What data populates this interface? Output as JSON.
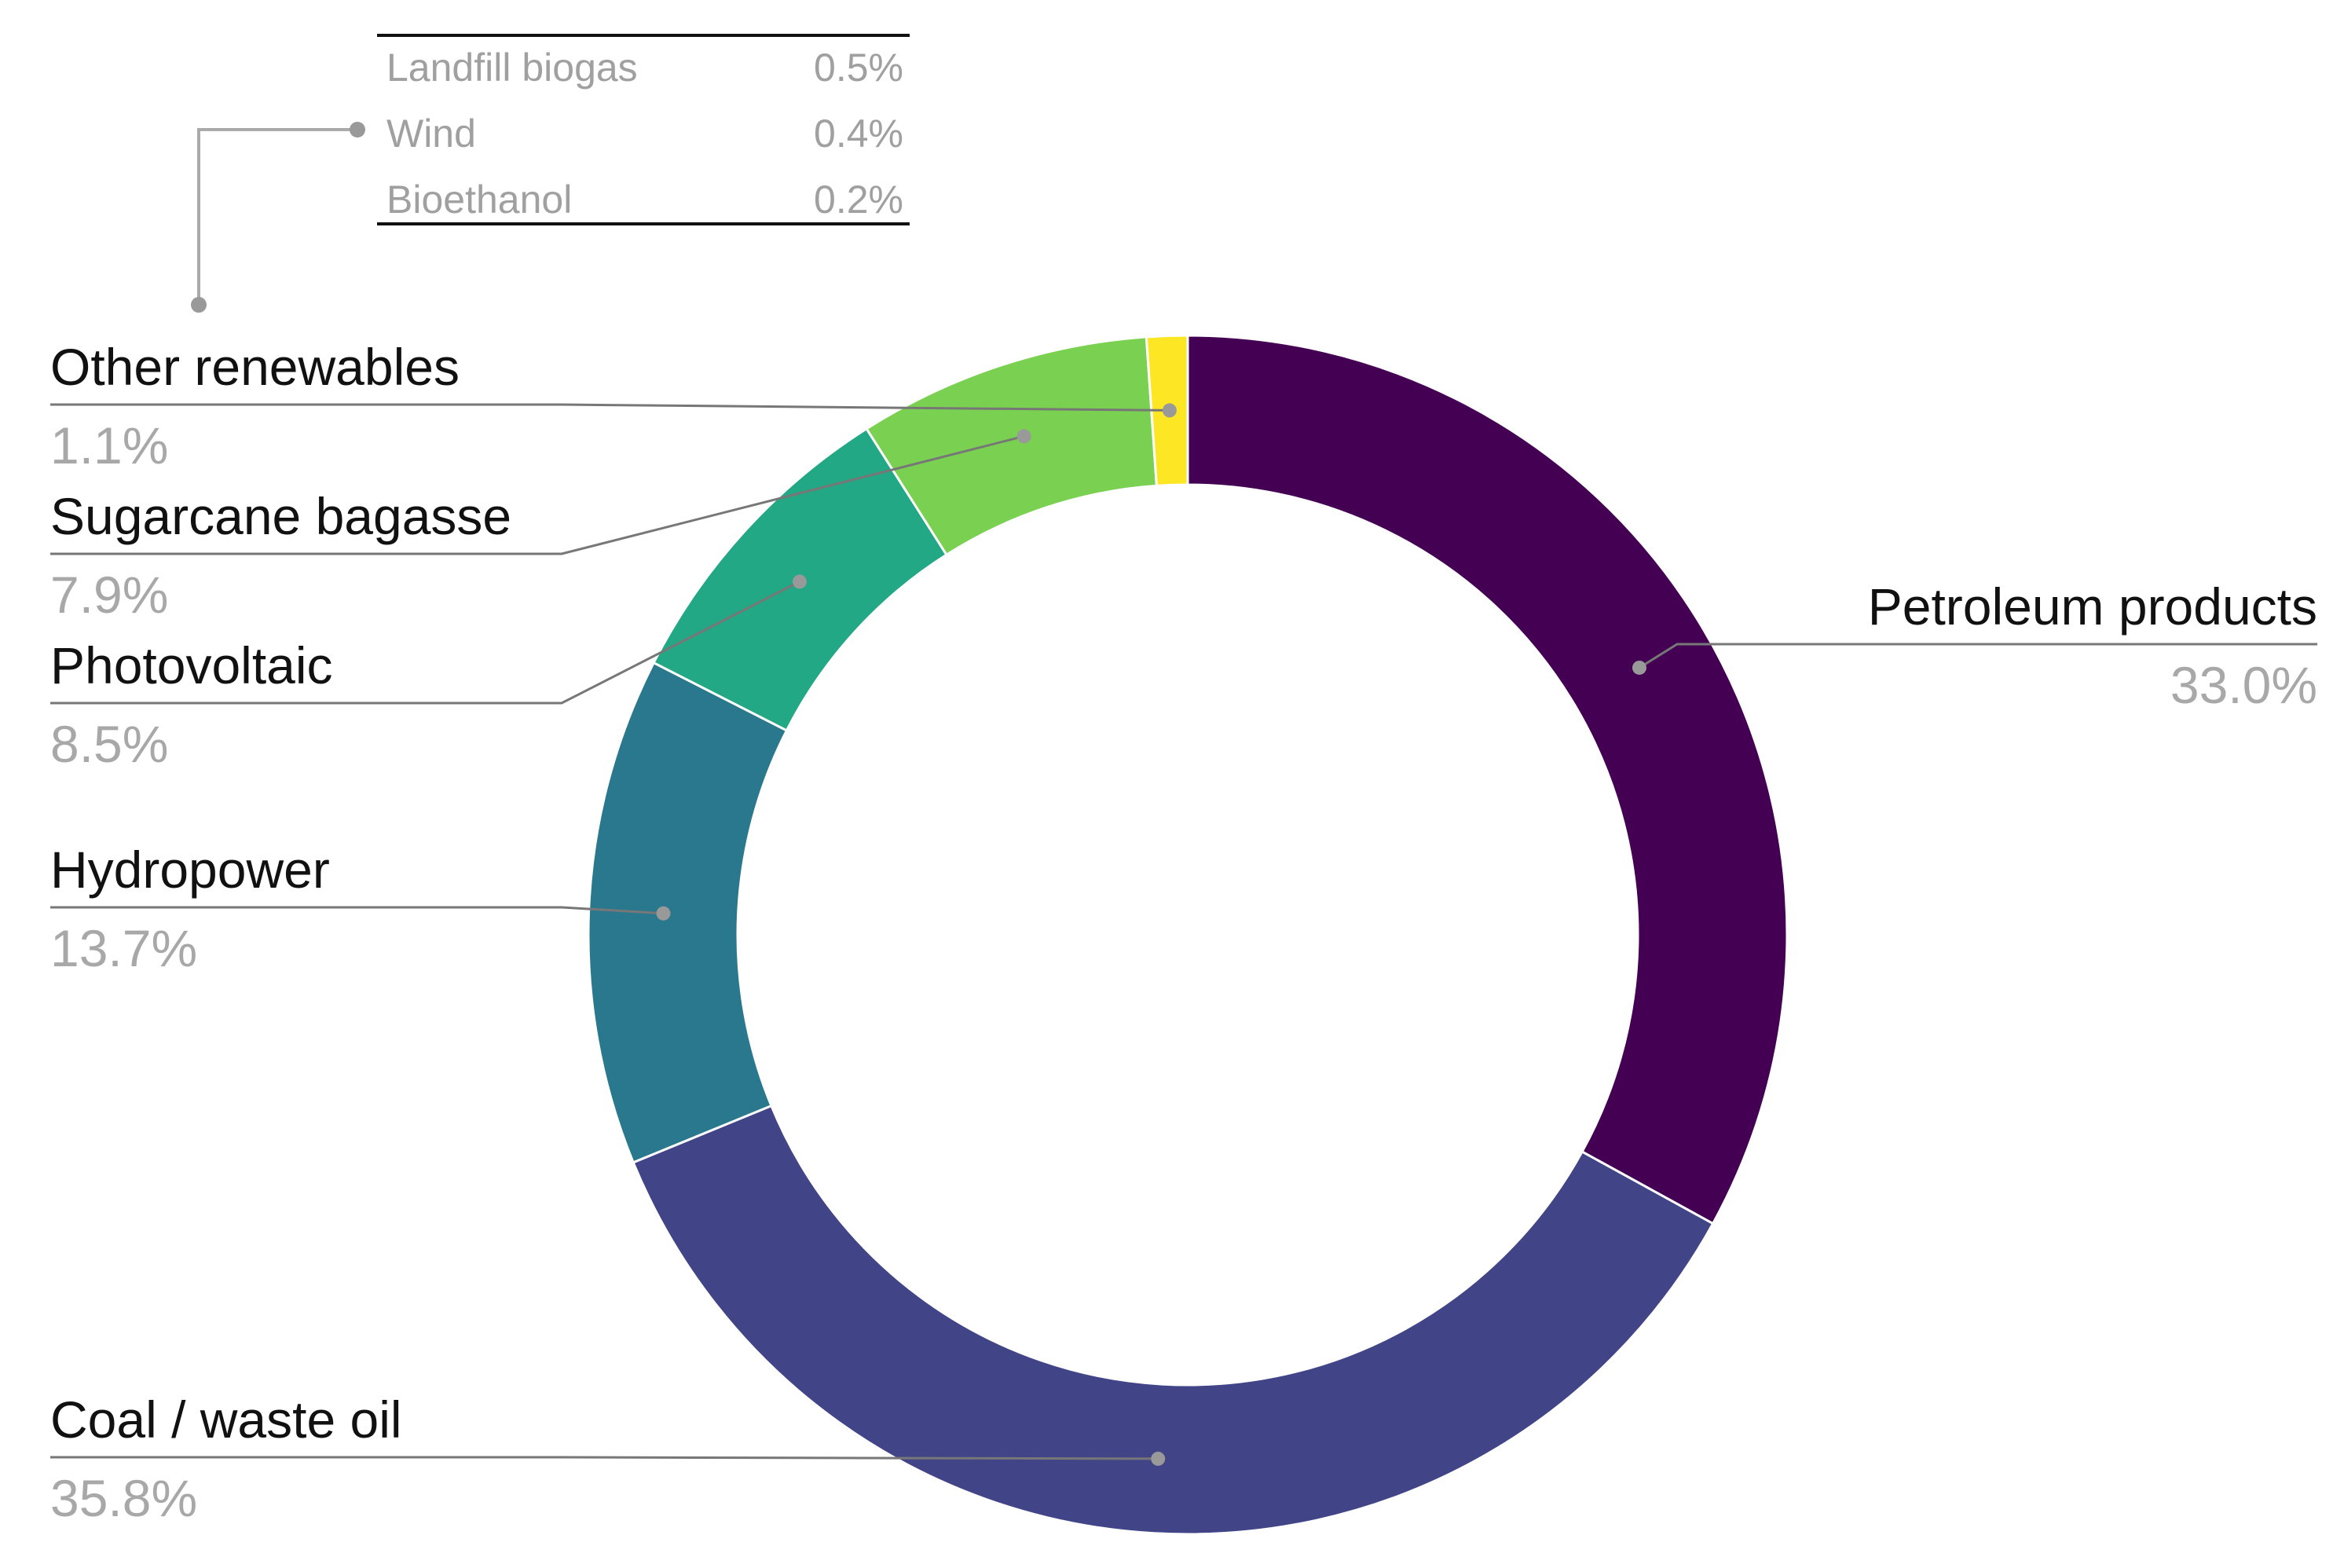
{
  "chart_data": {
    "type": "pie",
    "variant": "donut",
    "slices": [
      {
        "label": "Petroleum products",
        "value": 33.0,
        "value_label": "33.0%",
        "color": "#440154"
      },
      {
        "label": "Coal / waste oil",
        "value": 35.8,
        "value_label": "35.8%",
        "color": "#414487"
      },
      {
        "label": "Hydropower",
        "value": 13.7,
        "value_label": "13.7%",
        "color": "#2a788e"
      },
      {
        "label": "Photovoltaic",
        "value": 8.5,
        "value_label": "8.5%",
        "color": "#22a884"
      },
      {
        "label": "Sugarcane bagasse",
        "value": 7.9,
        "value_label": "7.9%",
        "color": "#7ad151"
      },
      {
        "label": "Other renewables",
        "value": 1.1,
        "value_label": "1.1%",
        "color": "#fde725"
      }
    ],
    "breakdown": {
      "parent": "Other renewables",
      "rows": [
        {
          "label": "Landfill biogas",
          "value": 0.5,
          "value_label": "0.5%"
        },
        {
          "label": "Wind",
          "value": 0.4,
          "value_label": "0.4%"
        },
        {
          "label": "Bioethanol",
          "value": 0.2,
          "value_label": "0.2%"
        }
      ]
    },
    "title": "",
    "legend": "none"
  }
}
